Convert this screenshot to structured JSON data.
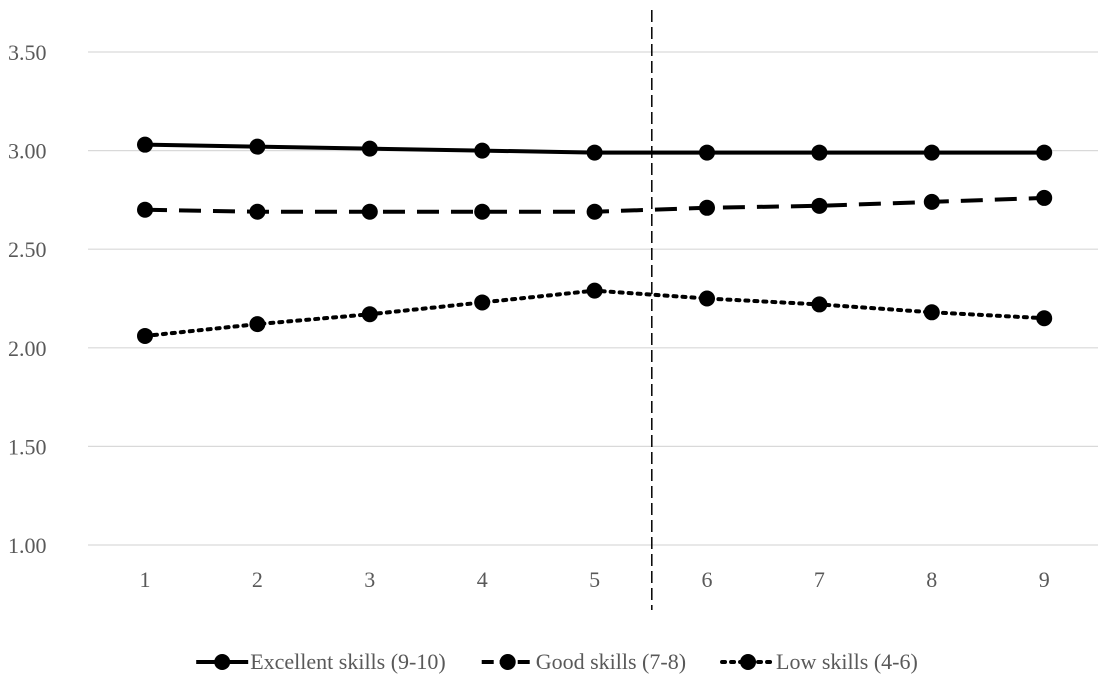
{
  "chart_data": {
    "type": "line",
    "title": "",
    "xlabel": "",
    "ylabel": "",
    "categories": [
      "1",
      "2",
      "3",
      "4",
      "5",
      "6",
      "7",
      "8",
      "9"
    ],
    "ylim": [
      1.0,
      3.5
    ],
    "yticks": [
      "1.00",
      "1.50",
      "2.00",
      "2.50",
      "3.00",
      "3.50"
    ],
    "grid": "horizontal",
    "legend_position": "bottom",
    "divider_between": [
      "5",
      "6"
    ],
    "series": [
      {
        "name": "Excellent skills (9-10)",
        "style": "solid",
        "color": "#000000",
        "values": [
          3.03,
          3.02,
          3.01,
          3.0,
          2.99,
          2.99,
          2.99,
          2.99,
          2.99
        ]
      },
      {
        "name": "Good skills (7-8)",
        "style": "dashed",
        "color": "#000000",
        "values": [
          2.7,
          2.69,
          2.69,
          2.69,
          2.69,
          2.71,
          2.72,
          2.74,
          2.76
        ]
      },
      {
        "name": "Low skills (4-6)",
        "style": "dotted",
        "color": "#000000",
        "values": [
          2.06,
          2.12,
          2.17,
          2.23,
          2.29,
          2.25,
          2.22,
          2.18,
          2.15
        ]
      }
    ]
  }
}
